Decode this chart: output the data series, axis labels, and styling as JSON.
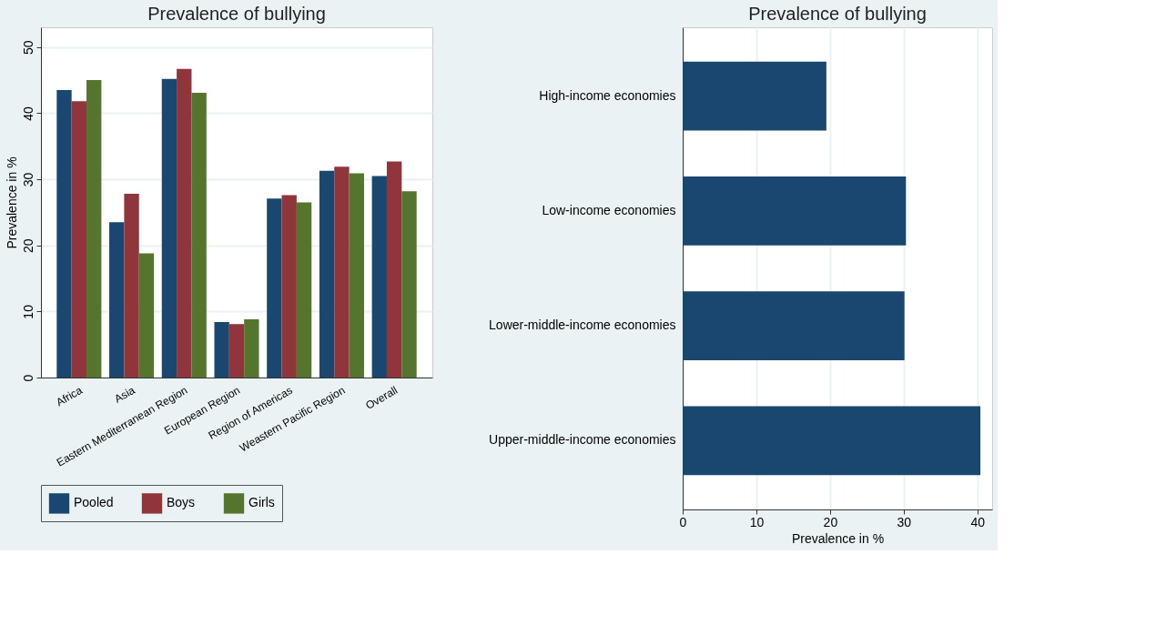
{
  "chart_data": [
    {
      "type": "bar",
      "title": "Prevalence of bullying",
      "ylabel": "Prevalence in %",
      "categories": [
        "Africa",
        "Asia",
        "Eastern Mediterranean Region",
        "European Region",
        "Region of Americas",
        "Weastern Pacific Region",
        "Overall"
      ],
      "series": [
        {
          "name": "Pooled",
          "color": "#1a476f",
          "values": [
            43.5,
            23.5,
            45.2,
            8.4,
            27.1,
            31.3,
            30.5
          ]
        },
        {
          "name": "Boys",
          "color": "#90353b",
          "values": [
            41.8,
            27.8,
            46.7,
            8.1,
            27.6,
            31.9,
            32.7
          ]
        },
        {
          "name": "Girls",
          "color": "#55752f",
          "values": [
            45.0,
            18.8,
            43.1,
            8.8,
            26.5,
            30.9,
            28.2
          ]
        }
      ],
      "ylim": [
        0,
        53
      ],
      "yticks": [
        0,
        10,
        20,
        30,
        40,
        50
      ],
      "grid": "y",
      "legend": "bottom"
    },
    {
      "type": "bar",
      "orientation": "horizontal",
      "title": "Prevalence of bullying",
      "xlabel": "Prevalence in %",
      "categories": [
        "High-income economies",
        "Low-income economies",
        "Lower-middle-income economies",
        "Upper-middle-income economies"
      ],
      "values": [
        19.5,
        30.3,
        30.1,
        40.4
      ],
      "color": "#1a476f",
      "xlim": [
        0,
        42
      ],
      "xticks": [
        0,
        10,
        20,
        30,
        40
      ],
      "grid": "x",
      "legend": false
    }
  ]
}
